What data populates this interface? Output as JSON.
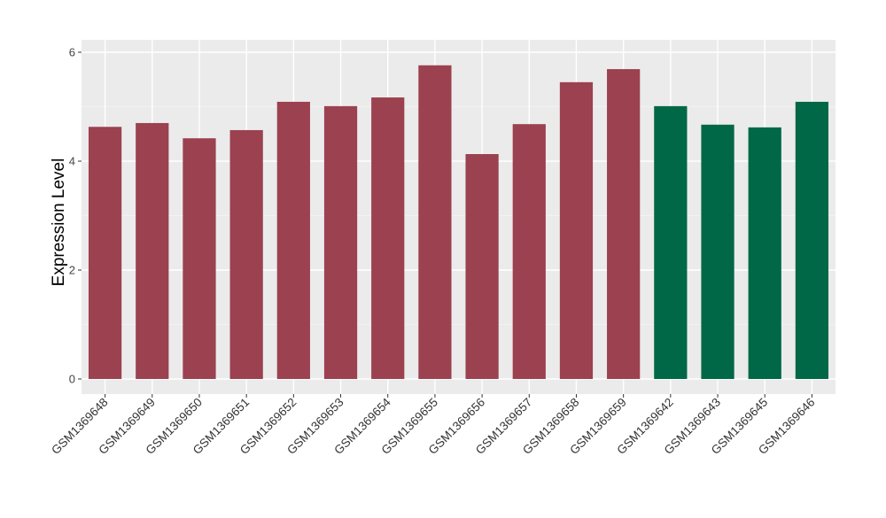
{
  "chart_data": {
    "type": "bar",
    "title": "",
    "xlabel": "",
    "ylabel": "Expression Level",
    "ylim": [
      -0.3,
      6.25
    ],
    "yticks": [
      0,
      2,
      4,
      6
    ],
    "grid": true,
    "categories": [
      "GSM1369648",
      "GSM1369649",
      "GSM1369650",
      "GSM1369651",
      "GSM1369652",
      "GSM1369653",
      "GSM1369654",
      "GSM1369655",
      "GSM1369656",
      "GSM1369657",
      "GSM1369658",
      "GSM1369659",
      "GSM1369642",
      "GSM1369643",
      "GSM1369645",
      "GSM1369646"
    ],
    "values": [
      4.63,
      4.7,
      4.42,
      4.57,
      5.09,
      5.01,
      5.17,
      5.76,
      4.13,
      4.68,
      5.45,
      5.69,
      5.01,
      4.67,
      4.62,
      5.09
    ],
    "groups": [
      "a",
      "a",
      "a",
      "a",
      "a",
      "a",
      "a",
      "a",
      "a",
      "a",
      "a",
      "a",
      "b",
      "b",
      "b",
      "b"
    ],
    "colors": {
      "a": "#9b4150",
      "b": "#006846"
    },
    "panel_background": "#ebebeb"
  }
}
